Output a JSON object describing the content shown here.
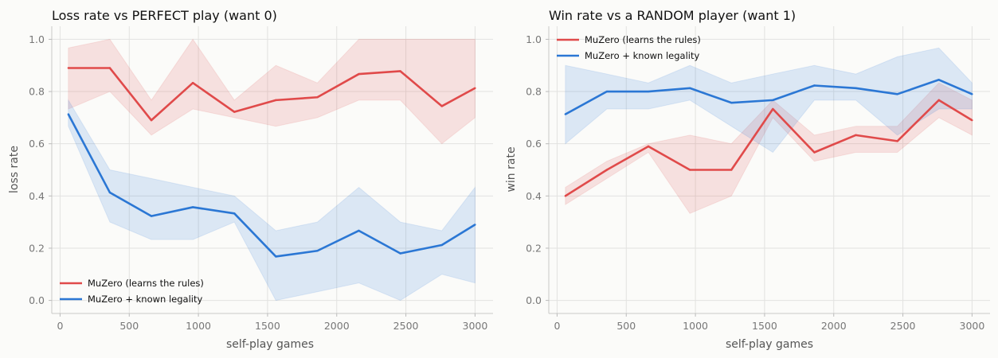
{
  "chart_data": [
    {
      "type": "line",
      "title": "Loss rate vs PERFECT play (want 0)",
      "xlabel": "self-play games",
      "ylabel": "loss rate",
      "xlim": [
        -60,
        3130
      ],
      "ylim": [
        -0.05,
        1.05
      ],
      "xticks": [
        0,
        500,
        1000,
        1500,
        2000,
        2500,
        3000
      ],
      "yticks": [
        0.0,
        0.2,
        0.4,
        0.6,
        0.8,
        1.0
      ],
      "grid": true,
      "legend_position": "bottom-left",
      "x": [
        60,
        360,
        660,
        960,
        1260,
        1560,
        1860,
        2160,
        2460,
        2760,
        3000
      ],
      "series": [
        {
          "name": "MuZero (learns the rules)",
          "color": "#e04a4a",
          "values": [
            0.89,
            0.89,
            0.69,
            0.833,
            0.722,
            0.767,
            0.778,
            0.867,
            0.878,
            0.744,
            0.813
          ],
          "lower": [
            0.733,
            0.8,
            0.633,
            0.733,
            0.7,
            0.667,
            0.7,
            0.767,
            0.767,
            0.6,
            0.7
          ],
          "upper": [
            0.967,
            1.0,
            0.767,
            1.0,
            0.767,
            0.9,
            0.833,
            1.0,
            1.0,
            1.0,
            1.0
          ]
        },
        {
          "name": "MuZero + known legality",
          "color": "#2b77d4",
          "values": [
            0.713,
            0.413,
            0.323,
            0.357,
            0.333,
            0.168,
            0.19,
            0.267,
            0.18,
            0.212,
            0.29
          ],
          "lower": [
            0.667,
            0.3,
            0.233,
            0.233,
            0.3,
            0.0,
            0.033,
            0.067,
            0.0,
            0.1,
            0.067
          ],
          "upper": [
            0.767,
            0.5,
            0.467,
            0.433,
            0.4,
            0.267,
            0.3,
            0.433,
            0.3,
            0.267,
            0.433
          ]
        }
      ]
    },
    {
      "type": "line",
      "title": "Win rate vs a RANDOM player (want 1)",
      "xlabel": "self-play games",
      "ylabel": "win rate",
      "xlim": [
        -60,
        3130
      ],
      "ylim": [
        -0.05,
        1.05
      ],
      "xticks": [
        0,
        500,
        1000,
        1500,
        2000,
        2500,
        3000
      ],
      "yticks": [
        0.0,
        0.2,
        0.4,
        0.6,
        0.8,
        1.0
      ],
      "grid": true,
      "legend_position": "top-left",
      "x": [
        60,
        360,
        660,
        960,
        1260,
        1560,
        1860,
        2160,
        2460,
        2760,
        3000
      ],
      "series": [
        {
          "name": "MuZero (learns the rules)",
          "color": "#e04a4a",
          "values": [
            0.4,
            0.5,
            0.59,
            0.5,
            0.5,
            0.733,
            0.567,
            0.633,
            0.61,
            0.767,
            0.69
          ],
          "lower": [
            0.367,
            0.467,
            0.567,
            0.333,
            0.4,
            0.7,
            0.533,
            0.567,
            0.567,
            0.7,
            0.633
          ],
          "upper": [
            0.433,
            0.533,
            0.6,
            0.633,
            0.6,
            0.767,
            0.633,
            0.667,
            0.667,
            0.833,
            0.767
          ]
        },
        {
          "name": "MuZero + known legality",
          "color": "#2b77d4",
          "values": [
            0.713,
            0.8,
            0.8,
            0.813,
            0.757,
            0.767,
            0.823,
            0.813,
            0.79,
            0.845,
            0.79
          ],
          "lower": [
            0.6,
            0.733,
            0.733,
            0.767,
            0.667,
            0.567,
            0.767,
            0.767,
            0.633,
            0.733,
            0.733
          ],
          "upper": [
            0.9,
            0.867,
            0.833,
            0.9,
            0.833,
            0.867,
            0.9,
            0.867,
            0.933,
            0.967,
            0.833
          ]
        }
      ]
    }
  ]
}
